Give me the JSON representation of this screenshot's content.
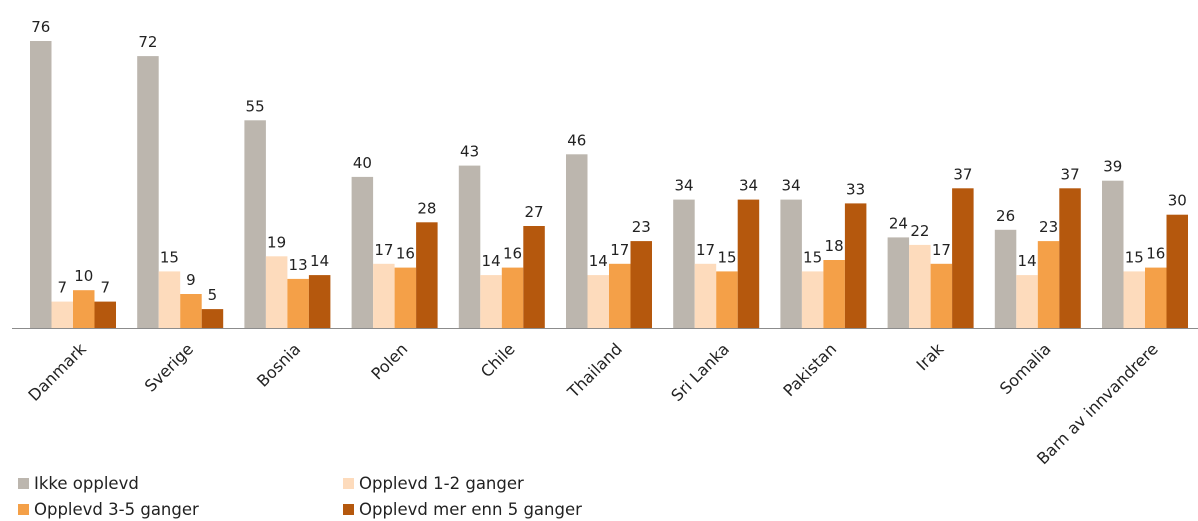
{
  "chart_data": {
    "type": "bar",
    "categories": [
      "Danmark",
      "Sverige",
      "Bosnia",
      "Polen",
      "Chile",
      "Thailand",
      "Sri Lanka",
      "Pakistan",
      "Irak",
      "Somalia",
      "Barn av innvandrere"
    ],
    "series": [
      {
        "name": "Ikke opplevd",
        "color": "#bcb6ae",
        "values": [
          76,
          72,
          55,
          40,
          43,
          46,
          34,
          34,
          24,
          26,
          39
        ]
      },
      {
        "name": "Opplevd 1-2 ganger",
        "color": "#fddbbc",
        "values": [
          7,
          15,
          19,
          17,
          14,
          14,
          17,
          15,
          22,
          14,
          15
        ]
      },
      {
        "name": "Opplevd 3-5 ganger",
        "color": "#f4a048",
        "values": [
          10,
          9,
          13,
          16,
          16,
          17,
          15,
          18,
          17,
          23,
          16
        ]
      },
      {
        "name": "Opplevd mer enn 5 ganger",
        "color": "#b5580d",
        "values": [
          7,
          5,
          14,
          28,
          27,
          23,
          34,
          33,
          37,
          37,
          30
        ]
      }
    ],
    "ylim": [
      0,
      80
    ],
    "grid": false,
    "legend_placement": "bottom-left",
    "title": "",
    "xlabel": "",
    "ylabel": ""
  }
}
